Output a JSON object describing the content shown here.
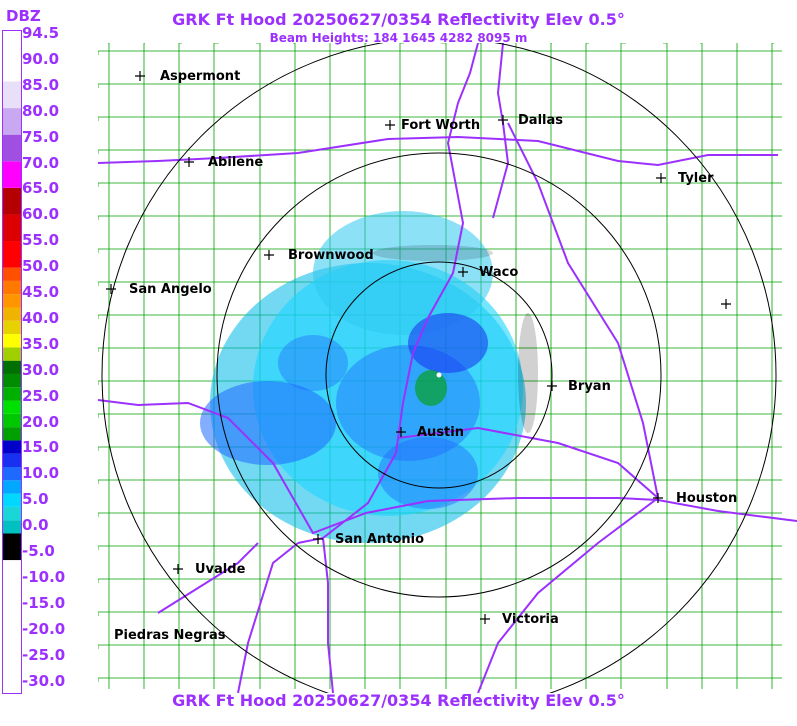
{
  "header": {
    "title": "GRK Ft Hood 20250627/0354 Reflectivity Elev 0.5°",
    "subtitle": "Beam Heights: 184 1645 4282 8095 m",
    "footer": "GRK Ft Hood 20250627/0354 Reflectivity Elev 0.5°"
  },
  "legend": {
    "unit": "DBZ",
    "labels": [
      "94.5",
      "90.0",
      "85.0",
      "80.0",
      "75.0",
      "70.0",
      "65.0",
      "60.0",
      "55.0",
      "50.0",
      "45.0",
      "40.0",
      "35.0",
      "30.0",
      "25.0",
      "20.0",
      "15.0",
      "10.0",
      "5.0",
      "0.0",
      "-5.0",
      "-10.0",
      "-15.0",
      "-20.0",
      "-25.0",
      "-30.0"
    ],
    "bands": [
      {
        "dbz_min": -30,
        "dbz_max": -5,
        "color": "#ffffff"
      },
      {
        "dbz_min": -5,
        "dbz_max": 0,
        "color": "#000000"
      },
      {
        "dbz_min": 0,
        "dbz_max": 2.5,
        "color": "#00c0c0"
      },
      {
        "dbz_min": 2.5,
        "dbz_max": 5,
        "color": "#1ad6d6"
      },
      {
        "dbz_min": 5,
        "dbz_max": 7.5,
        "color": "#00d8ff"
      },
      {
        "dbz_min": 7.5,
        "dbz_max": 10,
        "color": "#00a8ff"
      },
      {
        "dbz_min": 10,
        "dbz_max": 12.5,
        "color": "#1e6aff"
      },
      {
        "dbz_min": 12.5,
        "dbz_max": 15,
        "color": "#1830f0"
      },
      {
        "dbz_min": 15,
        "dbz_max": 17.5,
        "color": "#0000c8"
      },
      {
        "dbz_min": 17.5,
        "dbz_max": 20,
        "color": "#00a000"
      },
      {
        "dbz_min": 20,
        "dbz_max": 22.5,
        "color": "#00c800"
      },
      {
        "dbz_min": 22.5,
        "dbz_max": 25,
        "color": "#00e000"
      },
      {
        "dbz_min": 25,
        "dbz_max": 27.5,
        "color": "#00b000"
      },
      {
        "dbz_min": 27.5,
        "dbz_max": 30,
        "color": "#008c00"
      },
      {
        "dbz_min": 30,
        "dbz_max": 32.5,
        "color": "#007000"
      },
      {
        "dbz_min": 32.5,
        "dbz_max": 35,
        "color": "#a0d000"
      },
      {
        "dbz_min": 35,
        "dbz_max": 37.5,
        "color": "#ffff00"
      },
      {
        "dbz_min": 37.5,
        "dbz_max": 40,
        "color": "#e6d200"
      },
      {
        "dbz_min": 40,
        "dbz_max": 42.5,
        "color": "#f0b400"
      },
      {
        "dbz_min": 42.5,
        "dbz_max": 45,
        "color": "#ff9600"
      },
      {
        "dbz_min": 45,
        "dbz_max": 47.5,
        "color": "#ff7800"
      },
      {
        "dbz_min": 47.5,
        "dbz_max": 50,
        "color": "#ff5000"
      },
      {
        "dbz_min": 50,
        "dbz_max": 55,
        "color": "#ff0000"
      },
      {
        "dbz_min": 55,
        "dbz_max": 60,
        "color": "#dc0000"
      },
      {
        "dbz_min": 60,
        "dbz_max": 65,
        "color": "#b40000"
      },
      {
        "dbz_min": 65,
        "dbz_max": 70,
        "color": "#ff00ff"
      },
      {
        "dbz_min": 70,
        "dbz_max": 75,
        "color": "#a050e0"
      },
      {
        "dbz_min": 75,
        "dbz_max": 80,
        "color": "#c8a8f0"
      },
      {
        "dbz_min": 80,
        "dbz_max": 85,
        "color": "#e8e0f8"
      },
      {
        "dbz_min": 85,
        "dbz_max": 94.5,
        "color": "#ffffff"
      }
    ]
  },
  "cities": [
    {
      "id": "aspermont",
      "label": "Aspermont"
    },
    {
      "id": "fort-worth",
      "label": "Fort Worth"
    },
    {
      "id": "dallas",
      "label": "Dallas"
    },
    {
      "id": "abilene",
      "label": "Abilene"
    },
    {
      "id": "tyler",
      "label": "Tyler"
    },
    {
      "id": "brownwood",
      "label": "Brownwood"
    },
    {
      "id": "waco",
      "label": "Waco"
    },
    {
      "id": "san-angelo",
      "label": "San Angelo"
    },
    {
      "id": "bryan",
      "label": "Bryan"
    },
    {
      "id": "austin",
      "label": "Austin"
    },
    {
      "id": "houston",
      "label": "Houston"
    },
    {
      "id": "san-antonio",
      "label": "San Antonio"
    },
    {
      "id": "uvalde",
      "label": "Uvalde"
    },
    {
      "id": "victoria",
      "label": "Victoria"
    },
    {
      "id": "piedras-negras",
      "label": "Piedras Negras"
    },
    {
      "id": "unlabeled-east",
      "label": ""
    }
  ],
  "colors": {
    "title": "#9b30ff",
    "county_lines": "#00a000",
    "highways": "#9b30ff",
    "range_rings": "#000000"
  }
}
